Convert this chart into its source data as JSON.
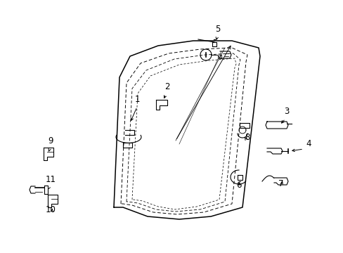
{
  "bg_color": "#ffffff",
  "line_color": "#000000",
  "fig_width": 4.89,
  "fig_height": 3.6,
  "dpi": 100,
  "fs": 8.5
}
